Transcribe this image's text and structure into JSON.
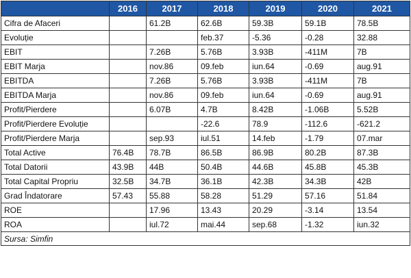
{
  "table": {
    "years": [
      "2016",
      "2017",
      "2018",
      "2019",
      "2020",
      "2021"
    ],
    "rows": [
      {
        "label": "Cifra de Afaceri",
        "values": [
          "",
          "61.2B",
          "62.6B",
          "59.3B",
          "59.1B",
          "78.5B"
        ]
      },
      {
        "label": "Evoluție",
        "values": [
          "",
          "",
          "feb.37",
          "-5.36",
          "-0.28",
          "32.88"
        ]
      },
      {
        "label": "EBIT",
        "values": [
          "",
          "7.26B",
          "5.76B",
          "3.93B",
          "-411M",
          "7B"
        ]
      },
      {
        "label": "EBIT Marja",
        "values": [
          "",
          "nov.86",
          "09.feb",
          "iun.64",
          "-0.69",
          "aug.91"
        ]
      },
      {
        "label": "EBITDA",
        "values": [
          "",
          "7.26B",
          "5.76B",
          "3.93B",
          "-411M",
          "7B"
        ]
      },
      {
        "label": "EBITDA Marja",
        "values": [
          "",
          "nov.86",
          "09.feb",
          "iun.64",
          "-0.69",
          "aug.91"
        ]
      },
      {
        "label": "Profit/Pierdere",
        "values": [
          "",
          "6.07B",
          "4.7B",
          "8.42B",
          "-1.06B",
          "5.52B"
        ]
      },
      {
        "label": "Profit/Pierdere Evoluție",
        "values": [
          "",
          "",
          "-22.6",
          "78.9",
          "-112.6",
          "-621.2"
        ]
      },
      {
        "label": "Profit/Pierdere Marja",
        "values": [
          "",
          "sep.93",
          "iul.51",
          "14.feb",
          "-1.79",
          "07.mar"
        ]
      },
      {
        "label": "Total Active",
        "values": [
          "76.4B",
          "78.7B",
          "86.5B",
          "86.9B",
          "80.2B",
          "87.3B"
        ]
      },
      {
        "label": "Total Datorii",
        "values": [
          "43.9B",
          "44B",
          "50.4B",
          "44.6B",
          "45.8B",
          "45.3B"
        ]
      },
      {
        "label": "Total Capital Propriu",
        "values": [
          "32.5B",
          "34.7B",
          "36.1B",
          "42.3B",
          "34.3B",
          "42B"
        ]
      },
      {
        "label": "Grad Îndatorare",
        "values": [
          "57.43",
          "55.88",
          "58.28",
          "51.29",
          "57.16",
          "51.84"
        ]
      },
      {
        "label": "ROE",
        "values": [
          "",
          "17.96",
          "13.43",
          "20.29",
          "-3.14",
          "13.54"
        ]
      },
      {
        "label": "ROA",
        "values": [
          "",
          "iul.72",
          "mai.44",
          "sep.68",
          "-1.32",
          "iun.32"
        ]
      }
    ],
    "source": "Sursa: Simfin"
  }
}
